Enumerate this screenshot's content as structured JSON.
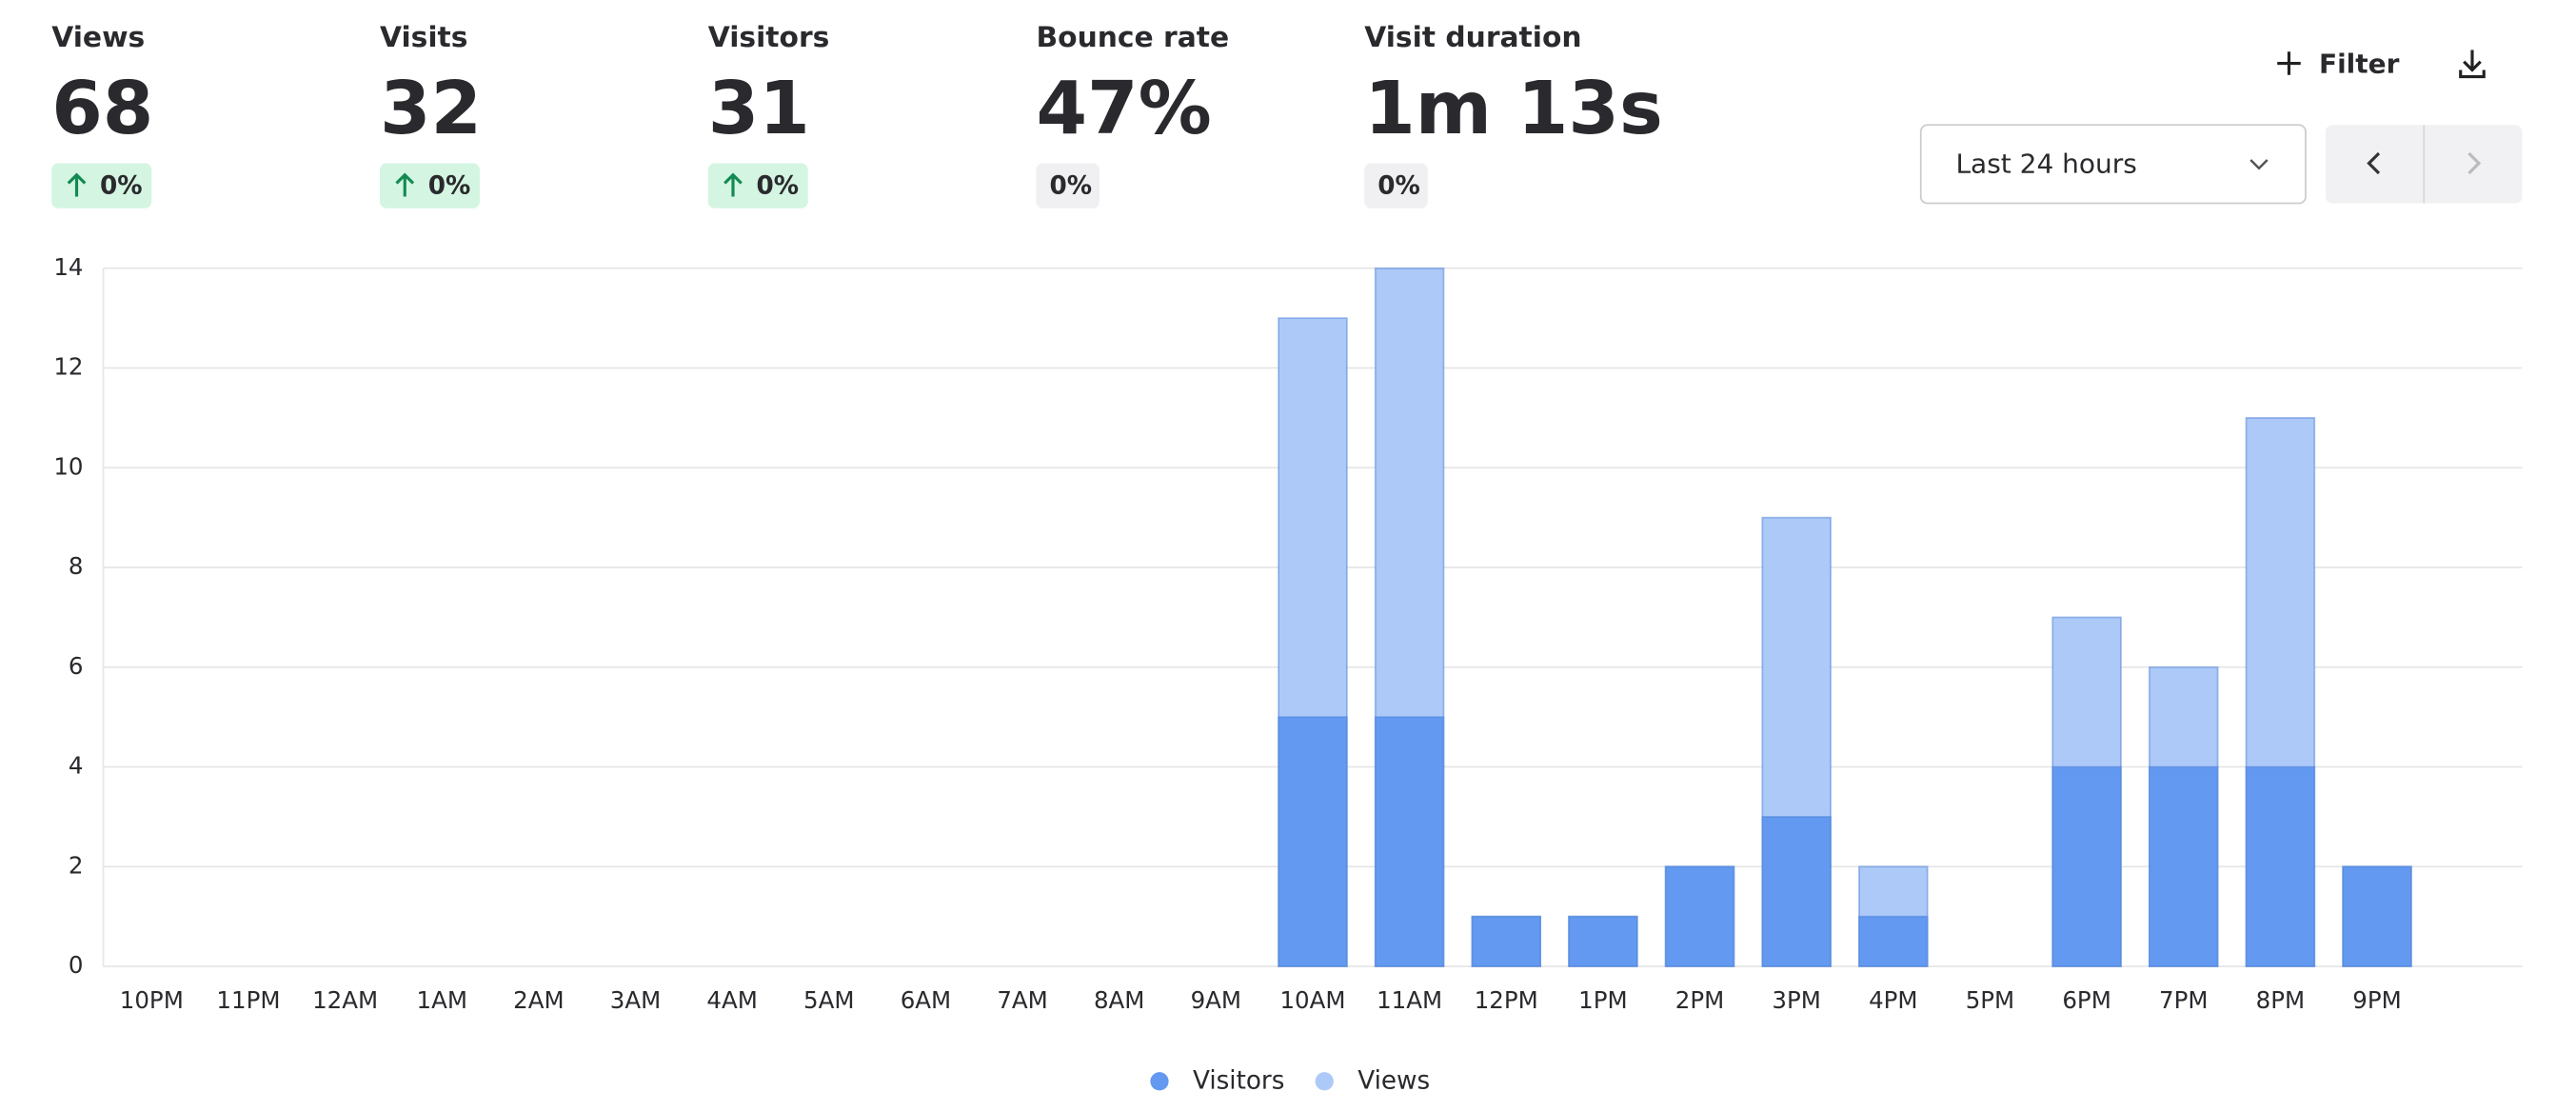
{
  "stats": [
    {
      "label": "Views",
      "value": 68,
      "change": "0%",
      "trend": "up"
    },
    {
      "label": "Visits",
      "value": 32,
      "change": "0%",
      "trend": "up"
    },
    {
      "label": "Visitors",
      "value": 31,
      "change": "0%",
      "trend": "up"
    },
    {
      "label": "Bounce rate",
      "value": "47%",
      "change": "0%"
    },
    {
      "label": "Visit duration",
      "value": "1m 13s",
      "change": "0%"
    }
  ],
  "controls": {
    "filter": "Filter",
    "period": "Last 24 hours"
  },
  "chart_data": {
    "type": "bar",
    "overlap": true,
    "categories": [
      "10PM",
      "11PM",
      "12AM",
      "1AM",
      "2AM",
      "3AM",
      "4AM",
      "5AM",
      "6AM",
      "7AM",
      "8AM",
      "9AM",
      "10AM",
      "11AM",
      "12PM",
      "1PM",
      "2PM",
      "3PM",
      "4PM",
      "5PM",
      "6PM",
      "7PM",
      "8PM",
      "9PM"
    ],
    "series": [
      {
        "name": "Visitors",
        "color": "#6399f0",
        "values": [
          0,
          0,
          0,
          0,
          0,
          0,
          0,
          0,
          0,
          0,
          0,
          0,
          5,
          5,
          1,
          1,
          2,
          3,
          1,
          0,
          4,
          4,
          4,
          2
        ]
      },
      {
        "name": "Views",
        "color": "#adc9f8",
        "values": [
          0,
          0,
          0,
          0,
          0,
          0,
          0,
          0,
          0,
          0,
          0,
          0,
          13,
          14,
          1,
          1,
          2,
          9,
          2,
          0,
          7,
          6,
          11,
          2
        ]
      }
    ],
    "ylim": [
      0,
      14
    ],
    "yticks": [
      0,
      2,
      4,
      6,
      8,
      10,
      12,
      14
    ],
    "grid": true
  }
}
